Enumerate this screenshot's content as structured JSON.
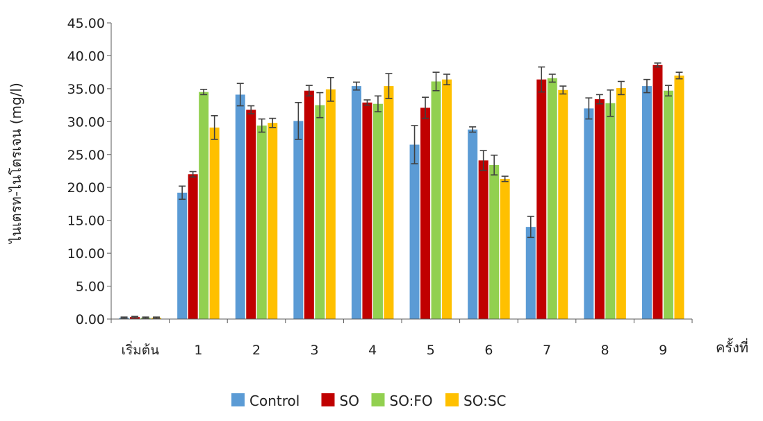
{
  "chart_data": {
    "type": "bar",
    "title": "",
    "xlabel": "ครั้งที่",
    "ylabel": "ไนเตรท-ไนโตรเจน (mg/l)",
    "ylim": [
      0,
      45
    ],
    "yticks": [
      "0.00",
      "5.00",
      "10.00",
      "15.00",
      "20.00",
      "25.00",
      "30.00",
      "35.00",
      "40.00",
      "45.00"
    ],
    "categories": [
      "เริ่มต้น",
      "1",
      "2",
      "3",
      "4",
      "5",
      "6",
      "7",
      "8",
      "9"
    ],
    "series": [
      {
        "name": "Control",
        "color": "#5b9bd5",
        "values": [
          0.2,
          19.2,
          34.1,
          30.1,
          35.4,
          26.5,
          28.8,
          14.0,
          32.0,
          35.4
        ],
        "errors": [
          0.1,
          1.0,
          1.7,
          2.8,
          0.6,
          2.9,
          0.4,
          1.6,
          1.6,
          1.0
        ]
      },
      {
        "name": "SO",
        "color": "#c00000",
        "values": [
          0.3,
          22.0,
          31.8,
          34.7,
          32.9,
          32.1,
          24.1,
          36.4,
          33.4,
          38.6
        ],
        "errors": [
          0.1,
          0.4,
          0.6,
          0.8,
          0.4,
          1.6,
          1.5,
          1.9,
          0.7,
          0.3
        ]
      },
      {
        "name": "SO:FO",
        "color": "#92d050",
        "values": [
          0.2,
          34.5,
          29.4,
          32.5,
          32.7,
          36.1,
          23.4,
          36.6,
          32.8,
          34.7
        ],
        "errors": [
          0.1,
          0.4,
          1.0,
          1.9,
          1.2,
          1.4,
          1.5,
          0.6,
          2.0,
          0.8
        ]
      },
      {
        "name": "SO:SC",
        "color": "#ffc000",
        "values": [
          0.2,
          29.1,
          29.8,
          34.9,
          35.4,
          36.4,
          21.3,
          34.8,
          35.1,
          37.0
        ],
        "errors": [
          0.1,
          1.8,
          0.7,
          1.8,
          1.9,
          0.8,
          0.4,
          0.6,
          1.0,
          0.5
        ]
      }
    ],
    "legend_position": "bottom",
    "grid": false
  }
}
